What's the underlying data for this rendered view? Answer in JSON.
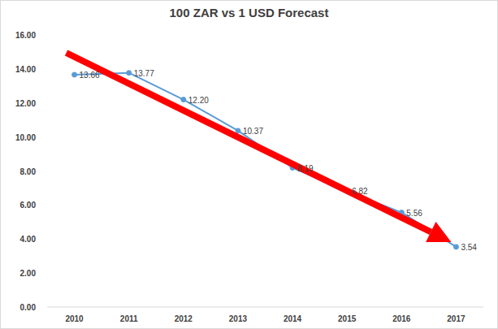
{
  "chart_data": {
    "type": "line",
    "title": "100 ZAR vs 1 USD Forecast",
    "categories": [
      "2010",
      "2011",
      "2012",
      "2013",
      "2014",
      "2015",
      "2016",
      "2017"
    ],
    "values": [
      13.66,
      13.77,
      12.2,
      10.37,
      8.19,
      6.82,
      5.56,
      3.54
    ],
    "value_labels": [
      "13.66",
      "13.77",
      "12.20",
      "10.37",
      "8.19",
      "6.82",
      "5.56",
      "3.54"
    ],
    "color": "#5b9bd5",
    "marker": "circle",
    "data_labels": true,
    "grid": false,
    "ylim": [
      0,
      16
    ],
    "yticks": [
      {
        "value": 0,
        "label": "0.00"
      },
      {
        "value": 2,
        "label": "2.00"
      },
      {
        "value": 4,
        "label": "4.00"
      },
      {
        "value": 6,
        "label": "6.00"
      },
      {
        "value": 8,
        "label": "8.00"
      },
      {
        "value": 10,
        "label": "10.00"
      },
      {
        "value": 12,
        "label": "12.00"
      },
      {
        "value": 14,
        "label": "14.00"
      },
      {
        "value": 16,
        "label": "16.00"
      }
    ]
  }
}
